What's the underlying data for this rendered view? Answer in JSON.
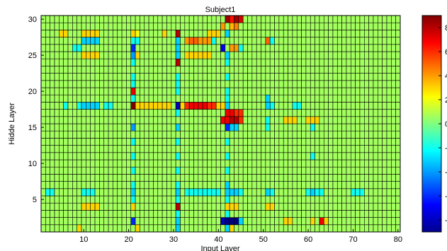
{
  "chart_data": {
    "type": "heatmap",
    "title": "Subject1",
    "xlabel": "Input Layer",
    "ylabel": "Hidde Layer",
    "cols": 80,
    "rows": 30,
    "xlim": [
      0.5,
      80.5
    ],
    "ylim": [
      0.5,
      30.5
    ],
    "xticks": [
      "10",
      "20",
      "30",
      "40",
      "50",
      "60",
      "70",
      "80"
    ],
    "yticks": [
      "5",
      "10",
      "15",
      "20",
      "25",
      "30"
    ],
    "colorbar": {
      "min": -9,
      "max": 9,
      "ticks": [
        "8",
        "6",
        "4",
        "2",
        "0",
        "-2",
        "-4",
        "-6",
        "-8"
      ],
      "colormap": "jet"
    },
    "base_value": 0.6,
    "cells": [
      {
        "x": 42,
        "y": 30,
        "v": 8.5
      },
      {
        "x": 43,
        "y": 30,
        "v": 6.5
      },
      {
        "x": 44,
        "y": 30,
        "v": 8.5
      },
      {
        "x": 45,
        "y": 30,
        "v": 7.5
      },
      {
        "x": 41,
        "y": 29,
        "v": 4
      },
      {
        "x": 43,
        "y": 29,
        "v": 3.5
      },
      {
        "x": 44,
        "y": 29,
        "v": 4.5
      },
      {
        "x": 42,
        "y": 28,
        "v": -3
      },
      {
        "x": 5,
        "y": 28,
        "v": 3
      },
      {
        "x": 6,
        "y": 28,
        "v": 3
      },
      {
        "x": 10,
        "y": 28,
        "v": 3
      },
      {
        "x": 11,
        "y": 28,
        "v": 3
      },
      {
        "x": 12,
        "y": 28,
        "v": 3
      },
      {
        "x": 13,
        "y": 28,
        "v": 3
      },
      {
        "x": 21,
        "y": 28,
        "v": 3
      },
      {
        "x": 22,
        "y": 28,
        "v": 2
      },
      {
        "x": 28,
        "y": 28,
        "v": 3
      },
      {
        "x": 31,
        "y": 28,
        "v": 8
      },
      {
        "x": 38,
        "y": 28,
        "v": 3
      },
      {
        "x": 39,
        "y": 28,
        "v": 3
      },
      {
        "x": 40,
        "y": 28,
        "v": 3
      },
      {
        "x": 10,
        "y": 27,
        "v": -3
      },
      {
        "x": 11,
        "y": 27,
        "v": -3
      },
      {
        "x": 12,
        "y": 27,
        "v": -3
      },
      {
        "x": 13,
        "y": 27,
        "v": -3
      },
      {
        "x": 21,
        "y": 27,
        "v": -2
      },
      {
        "x": 22,
        "y": 27,
        "v": -2
      },
      {
        "x": 31,
        "y": 27,
        "v": -3
      },
      {
        "x": 33,
        "y": 27,
        "v": 4
      },
      {
        "x": 34,
        "y": 27,
        "v": 5
      },
      {
        "x": 35,
        "y": 27,
        "v": 5
      },
      {
        "x": 36,
        "y": 27,
        "v": 4
      },
      {
        "x": 37,
        "y": 27,
        "v": 4
      },
      {
        "x": 38,
        "y": 27,
        "v": 4
      },
      {
        "x": 39,
        "y": 27,
        "v": -2
      },
      {
        "x": 51,
        "y": 27,
        "v": 5
      },
      {
        "x": 52,
        "y": 27,
        "v": -2
      },
      {
        "x": 41,
        "y": 26,
        "v": -7
      },
      {
        "x": 43,
        "y": 26,
        "v": 4
      },
      {
        "x": 44,
        "y": 26,
        "v": 4
      },
      {
        "x": 21,
        "y": 26,
        "v": -6
      },
      {
        "x": 31,
        "y": 26,
        "v": -3
      },
      {
        "x": 8,
        "y": 26,
        "v": -2
      },
      {
        "x": 9,
        "y": 26,
        "v": -2
      },
      {
        "x": 45,
        "y": 26,
        "v": -2
      },
      {
        "x": 10,
        "y": 25,
        "v": 3
      },
      {
        "x": 11,
        "y": 25,
        "v": 3
      },
      {
        "x": 12,
        "y": 25,
        "v": 3
      },
      {
        "x": 13,
        "y": 25,
        "v": 3
      },
      {
        "x": 21,
        "y": 25,
        "v": -4
      },
      {
        "x": 22,
        "y": 25,
        "v": 3
      },
      {
        "x": 31,
        "y": 25,
        "v": -3
      },
      {
        "x": 33,
        "y": 25,
        "v": 3
      },
      {
        "x": 34,
        "y": 25,
        "v": 3
      },
      {
        "x": 35,
        "y": 25,
        "v": 3
      },
      {
        "x": 36,
        "y": 25,
        "v": 3
      },
      {
        "x": 37,
        "y": 25,
        "v": 3
      },
      {
        "x": 38,
        "y": 25,
        "v": 3
      },
      {
        "x": 42,
        "y": 25,
        "v": -3
      },
      {
        "x": 31,
        "y": 24,
        "v": 8
      },
      {
        "x": 21,
        "y": 24,
        "v": -2
      },
      {
        "x": 42,
        "y": 24,
        "v": -2
      },
      {
        "x": 21,
        "y": 22,
        "v": -2
      },
      {
        "x": 31,
        "y": 22,
        "v": -2
      },
      {
        "x": 42,
        "y": 22,
        "v": -2
      },
      {
        "x": 21,
        "y": 21,
        "v": -2
      },
      {
        "x": 31,
        "y": 21,
        "v": -2
      },
      {
        "x": 21,
        "y": 20,
        "v": 7
      },
      {
        "x": 31,
        "y": 20,
        "v": -2
      },
      {
        "x": 42,
        "y": 20,
        "v": -2
      },
      {
        "x": 21,
        "y": 19,
        "v": -2
      },
      {
        "x": 42,
        "y": 19,
        "v": -2
      },
      {
        "x": 51,
        "y": 19,
        "v": -3
      },
      {
        "x": 6,
        "y": 18,
        "v": -2
      },
      {
        "x": 9,
        "y": 18,
        "v": -2
      },
      {
        "x": 10,
        "y": 18,
        "v": -3
      },
      {
        "x": 11,
        "y": 18,
        "v": -3
      },
      {
        "x": 12,
        "y": 18,
        "v": -3
      },
      {
        "x": 13,
        "y": 18,
        "v": -3
      },
      {
        "x": 15,
        "y": 18,
        "v": -2
      },
      {
        "x": 16,
        "y": 18,
        "v": -2
      },
      {
        "x": 21,
        "y": 18,
        "v": 9
      },
      {
        "x": 22,
        "y": 18,
        "v": 3
      },
      {
        "x": 23,
        "y": 18,
        "v": 3
      },
      {
        "x": 24,
        "y": 18,
        "v": 3
      },
      {
        "x": 25,
        "y": 18,
        "v": 3
      },
      {
        "x": 26,
        "y": 18,
        "v": 3
      },
      {
        "x": 27,
        "y": 18,
        "v": 3
      },
      {
        "x": 28,
        "y": 18,
        "v": 3
      },
      {
        "x": 29,
        "y": 18,
        "v": 3
      },
      {
        "x": 31,
        "y": 18,
        "v": -8
      },
      {
        "x": 32,
        "y": 18,
        "v": 3
      },
      {
        "x": 33,
        "y": 18,
        "v": 6
      },
      {
        "x": 34,
        "y": 18,
        "v": 7
      },
      {
        "x": 35,
        "y": 18,
        "v": 7
      },
      {
        "x": 36,
        "y": 18,
        "v": 7
      },
      {
        "x": 37,
        "y": 18,
        "v": 7
      },
      {
        "x": 38,
        "y": 18,
        "v": 6
      },
      {
        "x": 39,
        "y": 18,
        "v": 6
      },
      {
        "x": 40,
        "y": 18,
        "v": 3
      },
      {
        "x": 41,
        "y": 18,
        "v": 3
      },
      {
        "x": 42,
        "y": 18,
        "v": -3
      },
      {
        "x": 51,
        "y": 18,
        "v": -3
      },
      {
        "x": 52,
        "y": 18,
        "v": -2
      },
      {
        "x": 57,
        "y": 18,
        "v": -2
      },
      {
        "x": 58,
        "y": 18,
        "v": -2
      },
      {
        "x": 42,
        "y": 17,
        "v": 7
      },
      {
        "x": 43,
        "y": 17,
        "v": 7
      },
      {
        "x": 44,
        "y": 17,
        "v": 6
      },
      {
        "x": 45,
        "y": 17,
        "v": 6
      },
      {
        "x": 31,
        "y": 17,
        "v": -2
      },
      {
        "x": 41,
        "y": 16,
        "v": 7
      },
      {
        "x": 42,
        "y": 16,
        "v": 7
      },
      {
        "x": 43,
        "y": 16,
        "v": 8
      },
      {
        "x": 44,
        "y": 16,
        "v": 8
      },
      {
        "x": 45,
        "y": 16,
        "v": 6
      },
      {
        "x": 55,
        "y": 16,
        "v": 3
      },
      {
        "x": 56,
        "y": 16,
        "v": 3
      },
      {
        "x": 57,
        "y": 16,
        "v": 3
      },
      {
        "x": 60,
        "y": 16,
        "v": 3
      },
      {
        "x": 61,
        "y": 16,
        "v": 3
      },
      {
        "x": 62,
        "y": 16,
        "v": 3
      },
      {
        "x": 51,
        "y": 16,
        "v": -2
      },
      {
        "x": 21,
        "y": 15,
        "v": -4
      },
      {
        "x": 31,
        "y": 15,
        "v": -3
      },
      {
        "x": 42,
        "y": 15,
        "v": -6
      },
      {
        "x": 43,
        "y": 15,
        "v": -3
      },
      {
        "x": 44,
        "y": 15,
        "v": -3
      },
      {
        "x": 51,
        "y": 15,
        "v": -2
      },
      {
        "x": 61,
        "y": 15,
        "v": -2
      },
      {
        "x": 21,
        "y": 13,
        "v": -2
      },
      {
        "x": 31,
        "y": 13,
        "v": -2
      },
      {
        "x": 42,
        "y": 13,
        "v": -2
      },
      {
        "x": 21,
        "y": 11,
        "v": -2
      },
      {
        "x": 31,
        "y": 11,
        "v": -2
      },
      {
        "x": 42,
        "y": 11,
        "v": -2
      },
      {
        "x": 61,
        "y": 11,
        "v": -2
      },
      {
        "x": 21,
        "y": 9,
        "v": -2
      },
      {
        "x": 31,
        "y": 9,
        "v": -2
      },
      {
        "x": 42,
        "y": 9,
        "v": -2
      },
      {
        "x": 21,
        "y": 7,
        "v": -2
      },
      {
        "x": 31,
        "y": 7,
        "v": -2
      },
      {
        "x": 42,
        "y": 7,
        "v": -3
      },
      {
        "x": 2,
        "y": 6,
        "v": -2
      },
      {
        "x": 3,
        "y": 6,
        "v": -2
      },
      {
        "x": 10,
        "y": 6,
        "v": -2
      },
      {
        "x": 11,
        "y": 6,
        "v": -2
      },
      {
        "x": 12,
        "y": 6,
        "v": -2
      },
      {
        "x": 21,
        "y": 6,
        "v": -3
      },
      {
        "x": 31,
        "y": 6,
        "v": -3
      },
      {
        "x": 33,
        "y": 6,
        "v": -2
      },
      {
        "x": 34,
        "y": 6,
        "v": -2
      },
      {
        "x": 35,
        "y": 6,
        "v": -2
      },
      {
        "x": 36,
        "y": 6,
        "v": -2
      },
      {
        "x": 37,
        "y": 6,
        "v": -2
      },
      {
        "x": 38,
        "y": 6,
        "v": -2
      },
      {
        "x": 39,
        "y": 6,
        "v": -2
      },
      {
        "x": 40,
        "y": 6,
        "v": -2
      },
      {
        "x": 42,
        "y": 6,
        "v": -3
      },
      {
        "x": 43,
        "y": 6,
        "v": -3
      },
      {
        "x": 44,
        "y": 6,
        "v": -3
      },
      {
        "x": 45,
        "y": 6,
        "v": -2
      },
      {
        "x": 51,
        "y": 6,
        "v": -3
      },
      {
        "x": 52,
        "y": 6,
        "v": -2
      },
      {
        "x": 60,
        "y": 6,
        "v": -2
      },
      {
        "x": 61,
        "y": 6,
        "v": -3
      },
      {
        "x": 62,
        "y": 6,
        "v": -2
      },
      {
        "x": 63,
        "y": 6,
        "v": -2
      },
      {
        "x": 70,
        "y": 6,
        "v": -2
      },
      {
        "x": 71,
        "y": 6,
        "v": -2
      },
      {
        "x": 72,
        "y": 6,
        "v": -2
      },
      {
        "x": 21,
        "y": 5,
        "v": -2
      },
      {
        "x": 31,
        "y": 5,
        "v": -2
      },
      {
        "x": 42,
        "y": 5,
        "v": -2
      },
      {
        "x": 10,
        "y": 4,
        "v": 3
      },
      {
        "x": 11,
        "y": 4,
        "v": 3
      },
      {
        "x": 12,
        "y": 4,
        "v": 3
      },
      {
        "x": 13,
        "y": 4,
        "v": 3
      },
      {
        "x": 21,
        "y": 4,
        "v": 3
      },
      {
        "x": 31,
        "y": 4,
        "v": 8
      },
      {
        "x": 42,
        "y": 4,
        "v": 3
      },
      {
        "x": 43,
        "y": 4,
        "v": 3
      },
      {
        "x": 44,
        "y": 4,
        "v": 3
      },
      {
        "x": 51,
        "y": 4,
        "v": 3
      },
      {
        "x": 52,
        "y": 4,
        "v": 3
      },
      {
        "x": 31,
        "y": 3,
        "v": -2
      },
      {
        "x": 42,
        "y": 3,
        "v": -2
      },
      {
        "x": 21,
        "y": 2,
        "v": -6
      },
      {
        "x": 31,
        "y": 2,
        "v": -3
      },
      {
        "x": 41,
        "y": 2,
        "v": -8
      },
      {
        "x": 42,
        "y": 2,
        "v": -9
      },
      {
        "x": 43,
        "y": 2,
        "v": -9
      },
      {
        "x": 44,
        "y": 2,
        "v": -9
      },
      {
        "x": 45,
        "y": 2,
        "v": -3
      },
      {
        "x": 55,
        "y": 2,
        "v": 3
      },
      {
        "x": 56,
        "y": 2,
        "v": 3
      },
      {
        "x": 61,
        "y": 2,
        "v": 3
      },
      {
        "x": 63,
        "y": 2,
        "v": 7
      },
      {
        "x": 64,
        "y": 2,
        "v": 3
      },
      {
        "x": 9,
        "y": 1,
        "v": 3
      },
      {
        "x": 22,
        "y": 1,
        "v": 3
      },
      {
        "x": 31,
        "y": 1,
        "v": -3
      },
      {
        "x": 42,
        "y": 1,
        "v": -3
      },
      {
        "x": 43,
        "y": 1,
        "v": 3
      }
    ]
  }
}
